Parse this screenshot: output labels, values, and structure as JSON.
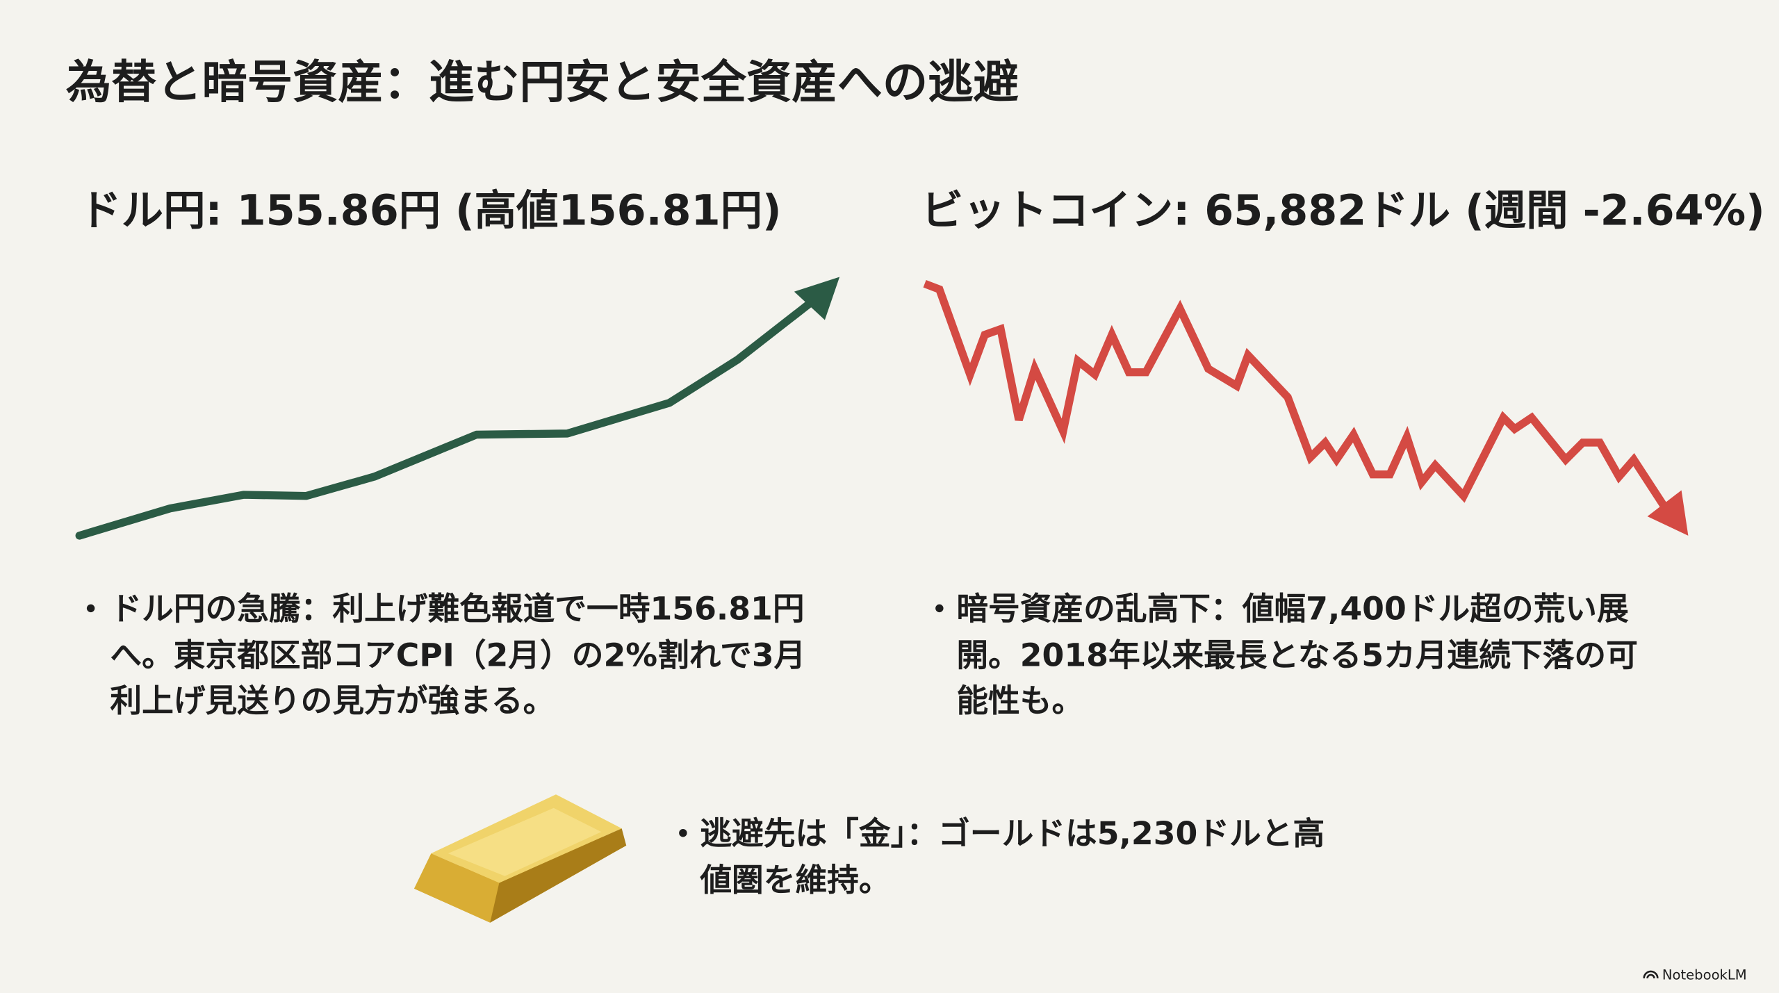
{
  "title": "為替と暗号資産：進む円安と安全資産への逃避",
  "left": {
    "heading": "ドル円: 155.86円  (高値156.81円)",
    "bullet": [
      "ドル円の急騰：利上げ難色報道で一時156.81円",
      "へ。東京都区部コアCPI（2月）の2%割れで3月",
      "利上げ見送りの見方が強まる。"
    ]
  },
  "right": {
    "heading": "ビットコイン: 65,882ドル (週間 -2.64%)",
    "bullet": [
      "暗号資産の乱高下：値幅7,400ドル超の荒い展",
      "開。2018年以来最長となる5カ月連続下落の可",
      "能性も。"
    ]
  },
  "gold": {
    "bullet": [
      "逃避先は「金」：ゴールドは5,230ドルと高",
      "値圏を維持。"
    ]
  },
  "footer": "NotebookLM"
}
